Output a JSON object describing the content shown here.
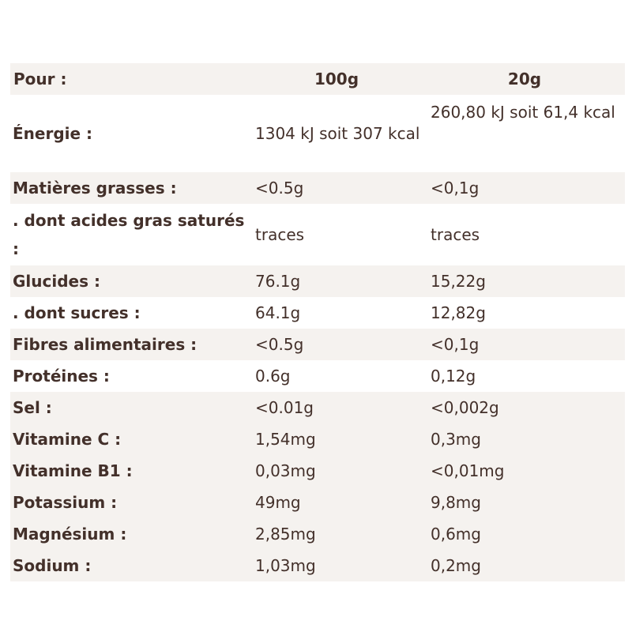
{
  "header": {
    "label": "Pour :",
    "col_100": "100g",
    "col_20": "20g"
  },
  "rows": [
    {
      "label": "Énergie :",
      "v100": "1304 kJ soit 307 kcal",
      "v20": "260,80 kJ soit 61,4 kcal"
    },
    {
      "label": "Matières grasses :",
      "v100": "<0.5g",
      "v20": "<0,1g"
    },
    {
      "label": ". dont acides gras saturés :",
      "v100": "traces",
      "v20": "traces"
    },
    {
      "label": "Glucides :",
      "v100": "76.1g",
      "v20": "15,22g"
    },
    {
      "label": ". dont sucres :",
      "v100": "64.1g",
      "v20": "12,82g"
    },
    {
      "label": "Fibres alimentaires :",
      "v100": "<0.5g",
      "v20": "<0,1g"
    },
    {
      "label": "Protéines :",
      "v100": "0.6g",
      "v20": "0,12g"
    },
    {
      "label": "Sel :",
      "v100": "<0.01g",
      "v20": "<0,002g"
    },
    {
      "label": "Vitamine C :",
      "v100": "1,54mg",
      "v20": "0,3mg"
    },
    {
      "label": "Vitamine B1 :",
      "v100": "0,03mg",
      "v20": "<0,01mg"
    },
    {
      "label": "Potassium :",
      "v100": "49mg",
      "v20": "9,8mg"
    },
    {
      "label": "Magnésium :",
      "v100": "2,85mg",
      "v20": "0,6mg"
    },
    {
      "label": "Sodium :",
      "v100": "1,03mg",
      "v20": "0,2mg"
    }
  ],
  "colors": {
    "text": "#43302a",
    "row_shade": "#f5f2ef",
    "background": "#ffffff"
  }
}
